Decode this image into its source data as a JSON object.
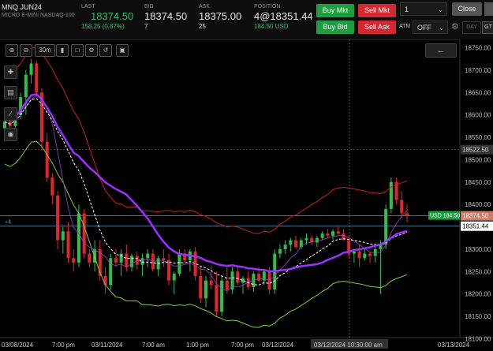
{
  "instrument": {
    "symbol": "MNQ JUN24",
    "description": "MICRO E-MINI NASDAQ-100"
  },
  "quote": {
    "last_label": "LAST",
    "last_value": "18374.50",
    "last_change": "158.25 (0.87%)",
    "bid_label": "BID",
    "bid_value": "18374.50",
    "bid_size": "7",
    "ask_label": "ASK",
    "ask_value": "18375.00",
    "ask_size": "25",
    "position_label": "POSITION",
    "position_value": "4@18351.44",
    "position_pnl": "184.50 USD"
  },
  "order_buttons": {
    "buy_mkt": "Buy Mkt",
    "sell_mkt": "Sell Mkt",
    "buy_bid": "Buy Bid",
    "sell_ask": "Sell Ask"
  },
  "quantity": "1",
  "close_label": "Close",
  "atm": {
    "label": "ATM",
    "value": "OFF"
  },
  "tif": {
    "day": "DAY",
    "gtc": "GT"
  },
  "toolbar": {
    "timeframe": "30m"
  },
  "price_labels": {
    "position_tag": "USD 184.50",
    "last_tag": "18374.50",
    "avg_tag": "18351.44",
    "line_tag": "18522.50",
    "qty_tag": "+4"
  },
  "y_axis_ticks": [
    "18750.00",
    "18700.00",
    "18650.00",
    "18600.00",
    "18550.00",
    "18500.00",
    "18450.00",
    "18400.00",
    "18350.00",
    "18300.00",
    "18250.00",
    "18200.00",
    "18150.00",
    "18100.00"
  ],
  "x_axis_ticks": [
    "03/08/2024",
    "7:00 pm",
    "03/11/2024",
    "7:00 am",
    "1:00 pm",
    "7:00 pm",
    "03/12/2024",
    "03/12/2024 10:30:00 am",
    "03/13/2024"
  ],
  "colors": {
    "bull": "#2fbf4a",
    "bear": "#e0262c",
    "upper_band": "#c81f1f",
    "lower_band": "#7ecf3a",
    "mid_band": "#9a3fc9",
    "ma_thick": "#9b30ff",
    "ma_dash": "#ffffff"
  },
  "chart_data": {
    "type": "candlestick",
    "ylim": [
      18090,
      18760
    ],
    "last_price": 18374.5,
    "position_avg": 18351.44,
    "horizontal_line": 18522.5,
    "candles": [
      [
        18570,
        18595,
        18560,
        18585
      ],
      [
        18585,
        18600,
        18570,
        18575
      ],
      [
        18575,
        18610,
        18565,
        18600
      ],
      [
        18600,
        18650,
        18590,
        18640
      ],
      [
        18640,
        18700,
        18600,
        18690
      ],
      [
        18690,
        18725,
        18670,
        18715
      ],
      [
        18715,
        18720,
        18640,
        18650
      ],
      [
        18650,
        18660,
        18520,
        18540
      ],
      [
        18540,
        18560,
        18450,
        18460
      ],
      [
        18460,
        18470,
        18400,
        18420
      ],
      [
        18420,
        18430,
        18300,
        18320
      ],
      [
        18320,
        18350,
        18290,
        18340
      ],
      [
        18340,
        18360,
        18270,
        18280
      ],
      [
        18280,
        18300,
        18250,
        18270
      ],
      [
        18270,
        18400,
        18260,
        18380
      ],
      [
        18380,
        18390,
        18280,
        18290
      ],
      [
        18290,
        18300,
        18260,
        18270
      ],
      [
        18270,
        18320,
        18250,
        18300
      ],
      [
        18300,
        18320,
        18230,
        18240
      ],
      [
        18240,
        18260,
        18200,
        18220
      ],
      [
        18220,
        18290,
        18210,
        18280
      ],
      [
        18280,
        18300,
        18260,
        18270
      ],
      [
        18270,
        18300,
        18240,
        18290
      ],
      [
        18290,
        18310,
        18250,
        18260
      ],
      [
        18260,
        18290,
        18250,
        18285
      ],
      [
        18285,
        18295,
        18255,
        18265
      ],
      [
        18265,
        18290,
        18240,
        18280
      ],
      [
        18280,
        18300,
        18260,
        18290
      ],
      [
        18290,
        18300,
        18250,
        18255
      ],
      [
        18255,
        18285,
        18240,
        18280
      ],
      [
        18280,
        18300,
        18260,
        18275
      ],
      [
        18275,
        18290,
        18220,
        18230
      ],
      [
        18230,
        18250,
        18200,
        18245
      ],
      [
        18245,
        18300,
        18240,
        18290
      ],
      [
        18290,
        18300,
        18270,
        18275
      ],
      [
        18275,
        18300,
        18250,
        18295
      ],
      [
        18295,
        18305,
        18230,
        18240
      ],
      [
        18240,
        18260,
        18180,
        18190
      ],
      [
        18190,
        18240,
        18170,
        18230
      ],
      [
        18230,
        18260,
        18210,
        18220
      ],
      [
        18220,
        18250,
        18150,
        18160
      ],
      [
        18160,
        18240,
        18150,
        18230
      ],
      [
        18230,
        18260,
        18200,
        18210
      ],
      [
        18210,
        18260,
        18200,
        18250
      ],
      [
        18250,
        18260,
        18220,
        18225
      ],
      [
        18225,
        18240,
        18200,
        18235
      ],
      [
        18235,
        18250,
        18210,
        18215
      ],
      [
        18215,
        18250,
        18205,
        18245
      ],
      [
        18245,
        18260,
        18225,
        18230
      ],
      [
        18230,
        18255,
        18220,
        18250
      ],
      [
        18250,
        18260,
        18200,
        18210
      ],
      [
        18210,
        18300,
        18200,
        18290
      ],
      [
        18290,
        18310,
        18280,
        18300
      ],
      [
        18300,
        18320,
        18290,
        18310
      ],
      [
        18310,
        18325,
        18295,
        18320
      ],
      [
        18320,
        18330,
        18300,
        18305
      ],
      [
        18305,
        18325,
        18300,
        18320
      ],
      [
        18320,
        18335,
        18310,
        18325
      ],
      [
        18325,
        18330,
        18310,
        18315
      ],
      [
        18315,
        18330,
        18305,
        18325
      ],
      [
        18325,
        18340,
        18320,
        18335
      ],
      [
        18335,
        18345,
        18325,
        18330
      ],
      [
        18330,
        18345,
        18320,
        18340
      ],
      [
        18340,
        18350,
        18330,
        18335
      ],
      [
        18335,
        18345,
        18320,
        18320
      ],
      [
        18320,
        18330,
        18280,
        18290
      ],
      [
        18290,
        18300,
        18270,
        18295
      ],
      [
        18295,
        18310,
        18260,
        18280
      ],
      [
        18280,
        18300,
        18275,
        18290
      ],
      [
        18290,
        18295,
        18270,
        18285
      ],
      [
        18285,
        18310,
        18270,
        18300
      ],
      [
        18300,
        18320,
        18200,
        18310
      ],
      [
        18310,
        18400,
        18300,
        18390
      ],
      [
        18390,
        18460,
        18380,
        18450
      ],
      [
        18450,
        18460,
        18400,
        18410
      ],
      [
        18410,
        18430,
        18370,
        18380
      ],
      [
        18380,
        18400,
        18360,
        18375
      ]
    ],
    "y_ticks": [
      18750,
      18700,
      18650,
      18600,
      18550,
      18500,
      18450,
      18400,
      18350,
      18300,
      18250,
      18200,
      18150,
      18100
    ]
  }
}
